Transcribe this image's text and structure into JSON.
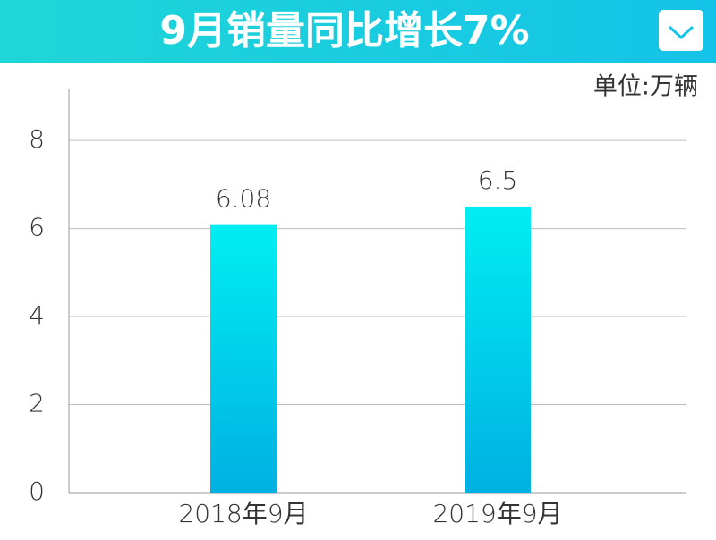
{
  "chart_data": {
    "type": "bar",
    "title": "9月销量同比增长7%",
    "unit_label": "单位:万辆",
    "categories": [
      "2018年9月",
      "2019年9月"
    ],
    "values": [
      6.08,
      6.5
    ],
    "gradient": [
      "#00eef2",
      "#00b0e2"
    ],
    "ylim": [
      0,
      9.2
    ],
    "yticks": [
      0,
      2,
      4,
      6,
      8
    ],
    "grid": true
  }
}
